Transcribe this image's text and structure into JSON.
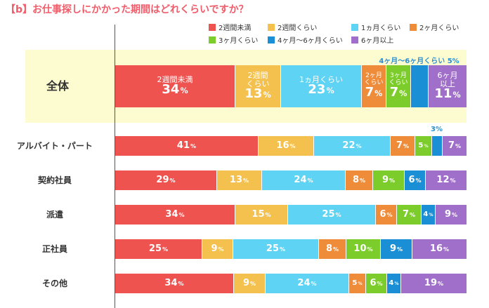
{
  "title": "【b】お仕事探しにかかった期間はどれくらいですか？",
  "colors": {
    "lt2w": "#ef5350",
    "w2": "#f4c04e",
    "m1": "#5fd3f3",
    "m2": "#ef8c3a",
    "m3": "#7ccc2c",
    "m4_6": "#1b8fd6",
    "m6p": "#a06fca",
    "band": "#fdfbd0"
  },
  "chart_data": {
    "type": "bar",
    "orientation": "horizontal",
    "stacked": true,
    "unit": "%",
    "title": "【b】お仕事探しにかかった期間はどれくらいですか？",
    "categories": [
      "全体",
      "アルバイト・パート",
      "契約社員",
      "派遣",
      "正社員",
      "その他"
    ],
    "series": [
      {
        "key": "lt2w",
        "name": "2週間未満",
        "values": [
          34,
          41,
          29,
          34,
          25,
          34
        ]
      },
      {
        "key": "w2",
        "name": "2週間くらい",
        "values": [
          13,
          16,
          13,
          15,
          9,
          9
        ]
      },
      {
        "key": "m1",
        "name": "1ヵ月くらい",
        "values": [
          23,
          22,
          24,
          25,
          25,
          24
        ]
      },
      {
        "key": "m2",
        "name": "2ヶ月くらい",
        "values": [
          7,
          7,
          8,
          6,
          8,
          5
        ]
      },
      {
        "key": "m3",
        "name": "3ヶ月くらい",
        "values": [
          7,
          5,
          9,
          7,
          10,
          6
        ]
      },
      {
        "key": "m4_6",
        "name": "4ヶ月〜6ヶ月くらい",
        "values": [
          5,
          3,
          6,
          4,
          9,
          4
        ]
      },
      {
        "key": "m6p",
        "name": "6ヶ月以上",
        "values": [
          11,
          7,
          12,
          9,
          16,
          19
        ]
      }
    ],
    "overall_segment_labels": {
      "lt2w": [
        "2週間未満"
      ],
      "w2": [
        "2週間",
        "くらい"
      ],
      "m1": [
        "1ヵ月くらい"
      ],
      "m2": [
        "2ヶ月",
        "くらい"
      ],
      "m3": [
        "3ヶ月",
        "くらい"
      ],
      "m4_6": [],
      "m6p": [
        "6ヶ月",
        "以上"
      ]
    },
    "callouts": [
      {
        "row": 0,
        "series": "m4_6",
        "text": "4ヶ月〜6ヶ月くらい 5%"
      },
      {
        "row": 1,
        "series": "m4_6",
        "text": "3%"
      }
    ],
    "legend_position": "top",
    "grid": false
  }
}
